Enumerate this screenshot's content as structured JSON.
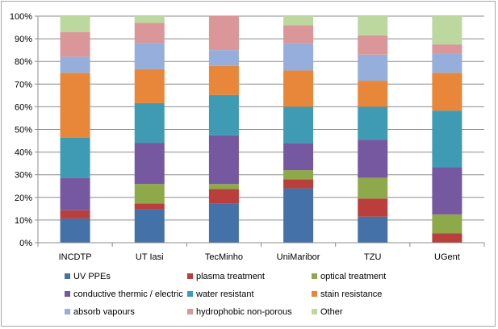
{
  "chart_data": {
    "type": "bar",
    "stacked": true,
    "percent": true,
    "title": "",
    "xlabel": "",
    "ylabel": "",
    "ylim": [
      0,
      100
    ],
    "y_ticks": [
      "0%",
      "10%",
      "20%",
      "30%",
      "40%",
      "50%",
      "60%",
      "70%",
      "80%",
      "90%",
      "100%"
    ],
    "grid": true,
    "legend_position": "bottom",
    "categories": [
      "INCDTP",
      "UT Iasi",
      "TecMinho",
      "UniMaribor",
      "TZU",
      "UGent"
    ],
    "series": [
      {
        "name": "UV PPEs",
        "color": "#4472a8",
        "values": [
          10.7,
          14.8,
          17.2,
          24.0,
          11.5,
          0.0
        ]
      },
      {
        "name": "plasma treatment",
        "color": "#ba3e3b",
        "values": [
          3.6,
          2.5,
          6.5,
          4.0,
          8.0,
          4.2
        ]
      },
      {
        "name": "optical treatment",
        "color": "#8ea94a",
        "values": [
          0.0,
          8.6,
          2.2,
          4.0,
          9.2,
          8.3
        ]
      },
      {
        "name": "conductive thermic / electric",
        "color": "#7558a0",
        "values": [
          14.3,
          18.2,
          21.5,
          12.0,
          16.8,
          20.8
        ]
      },
      {
        "name": "water resistant",
        "color": "#3f9bb4",
        "values": [
          17.8,
          17.5,
          17.8,
          16.0,
          14.5,
          25.0
        ]
      },
      {
        "name": "stain resistance",
        "color": "#e8863a",
        "values": [
          28.6,
          15.0,
          12.8,
          16.0,
          11.5,
          16.7
        ]
      },
      {
        "name": "absorb vapours",
        "color": "#95aedb",
        "values": [
          7.1,
          11.6,
          7.0,
          12.0,
          11.5,
          8.3
        ]
      },
      {
        "name": "hydrophobic non-porous",
        "color": "#da9698",
        "values": [
          10.8,
          8.8,
          15.0,
          8.0,
          8.5,
          4.2
        ]
      },
      {
        "name": "Other",
        "color": "#bcd89e",
        "values": [
          7.1,
          3.0,
          0.0,
          4.0,
          8.5,
          12.5
        ]
      }
    ]
  }
}
